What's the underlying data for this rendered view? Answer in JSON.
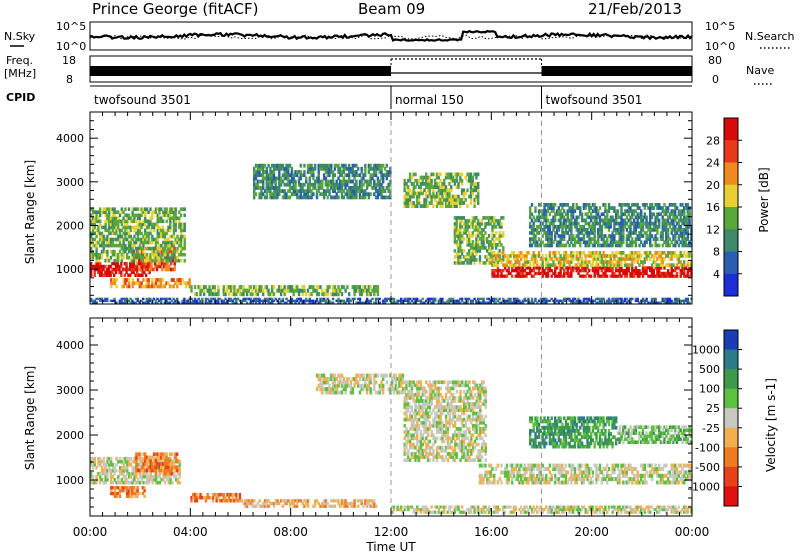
{
  "header": {
    "station": "Prince George (fitACF)",
    "beam": "Beam 09",
    "date": "21/Feb/2013"
  },
  "top_panels": {
    "nsky_label": "N.Sky",
    "nsky_ticks": [
      "10^5",
      "10^0"
    ],
    "nsearch_label": "N.Search",
    "nsearch_ticks": [
      "10^5",
      "10^0"
    ],
    "freq_label": "Freq.",
    "freq_unit": "[MHz]",
    "freq_ticks": [
      "18",
      "8"
    ],
    "nave_label": "Nave",
    "nave_ticks": [
      "80",
      "0"
    ],
    "cpid_label": "CPID",
    "cpid_segments": [
      {
        "label": "twofsound 3501",
        "start_hour": 0,
        "end_hour": 12
      },
      {
        "label": "normal 150",
        "start_hour": 12,
        "end_hour": 18
      },
      {
        "label": "twofsound 3501",
        "start_hour": 18,
        "end_hour": 24
      }
    ]
  },
  "chart_data": [
    {
      "type": "heatmap",
      "panel": "power",
      "ylabel": "Slant Range [km]",
      "yticks": [
        "1000",
        "2000",
        "3000",
        "4000"
      ],
      "ylim": [
        200,
        4600
      ],
      "xlim": [
        0,
        24
      ],
      "colorbar_label": "Power [dB]",
      "colorbar_ticks": [
        "4",
        "8",
        "12",
        "16",
        "20",
        "24",
        "28"
      ],
      "colors": [
        "#1a2fd6",
        "#2a5fb0",
        "#3d8a6a",
        "#5aa83a",
        "#e8d030",
        "#f08a1e",
        "#e83a1a",
        "#d80a0a"
      ],
      "echo_regions": [
        {
          "t0": 0.0,
          "t1": 2.4,
          "r0": 820,
          "r1": 1150,
          "level": 7
        },
        {
          "t0": 1.7,
          "t1": 3.4,
          "r0": 950,
          "r1": 1500,
          "level": 6
        },
        {
          "t0": 0.0,
          "t1": 3.8,
          "r0": 1150,
          "r1": 2400,
          "level": 3
        },
        {
          "t0": 0.8,
          "t1": 4.0,
          "r0": 560,
          "r1": 780,
          "level": 5
        },
        {
          "t0": 4.0,
          "t1": 11.5,
          "r0": 380,
          "r1": 620,
          "level": 3
        },
        {
          "t0": 6.5,
          "t1": 12.0,
          "r0": 2600,
          "r1": 3400,
          "level": 2
        },
        {
          "t0": 12.5,
          "t1": 15.5,
          "r0": 2400,
          "r1": 3200,
          "level": 3
        },
        {
          "t0": 14.5,
          "t1": 16.5,
          "r0": 1100,
          "r1": 2200,
          "level": 3
        },
        {
          "t0": 16.0,
          "t1": 24.0,
          "r0": 800,
          "r1": 1050,
          "level": 7
        },
        {
          "t0": 16.0,
          "t1": 24.0,
          "r0": 1050,
          "r1": 1400,
          "level": 4
        },
        {
          "t0": 17.5,
          "t1": 24.0,
          "r0": 1500,
          "r1": 2500,
          "level": 2
        },
        {
          "t0": 0.0,
          "t1": 24.0,
          "r0": 200,
          "r1": 330,
          "level": 1
        }
      ]
    },
    {
      "type": "heatmap",
      "panel": "velocity",
      "ylabel": "Slant Range [km]",
      "yticks": [
        "1000",
        "2000",
        "3000",
        "4000"
      ],
      "ylim": [
        200,
        4600
      ],
      "xlim": [
        0,
        24
      ],
      "xlabel": "Time UT",
      "xticks": [
        "00:00",
        "04:00",
        "08:00",
        "12:00",
        "16:00",
        "20:00",
        "00:00"
      ],
      "colorbar_label": "Velocity [m s-1]",
      "colorbar_ticks": [
        "1000",
        "500",
        "100",
        "25",
        "-25",
        "-100",
        "-500",
        "-1000"
      ],
      "colors": [
        "#1c3cb4",
        "#2d7a8a",
        "#3c9a4a",
        "#5cc040",
        "#c8c8c0",
        "#f0b050",
        "#f07a20",
        "#e84018",
        "#e01010"
      ],
      "echo_regions": [
        {
          "t0": 0.0,
          "t1": 3.6,
          "r0": 900,
          "r1": 1500,
          "level": 4
        },
        {
          "t0": 1.8,
          "t1": 3.5,
          "r0": 1100,
          "r1": 1600,
          "level": 6
        },
        {
          "t0": 0.8,
          "t1": 2.2,
          "r0": 600,
          "r1": 850,
          "level": 6
        },
        {
          "t0": 4.0,
          "t1": 6.0,
          "r0": 500,
          "r1": 700,
          "level": 6
        },
        {
          "t0": 6.0,
          "t1": 11.5,
          "r0": 380,
          "r1": 560,
          "level": 5
        },
        {
          "t0": 9.0,
          "t1": 12.5,
          "r0": 2900,
          "r1": 3350,
          "level": 4
        },
        {
          "t0": 12.5,
          "t1": 15.8,
          "r0": 1400,
          "r1": 3200,
          "level": 4
        },
        {
          "t0": 15.5,
          "t1": 24.0,
          "r0": 900,
          "r1": 1350,
          "level": 4
        },
        {
          "t0": 17.5,
          "t1": 21.0,
          "r0": 1700,
          "r1": 2400,
          "level": 2
        },
        {
          "t0": 21.0,
          "t1": 24.0,
          "r0": 1800,
          "r1": 2200,
          "level": 3
        },
        {
          "t0": 12.0,
          "t1": 24.0,
          "r0": 250,
          "r1": 420,
          "level": 4
        }
      ]
    }
  ]
}
